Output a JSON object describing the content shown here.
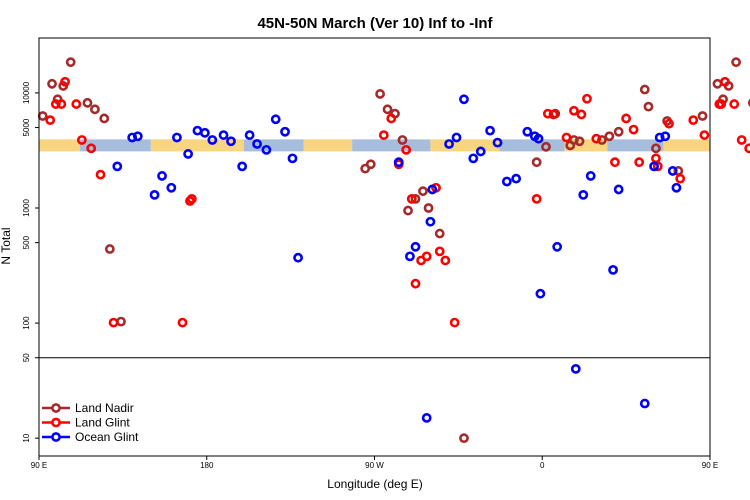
{
  "chart_data": {
    "type": "scatter",
    "title": "45N-50N March (Ver 10)   Inf to -Inf",
    "xlabel": "Longitude (deg E)",
    "ylabel": "N Total",
    "x_unwrapped_range": [
      90,
      450
    ],
    "xticks": [
      {
        "x": 90,
        "label": "90 E"
      },
      {
        "x": 180,
        "label": "180"
      },
      {
        "x": 270,
        "label": "90 W"
      },
      {
        "x": 360,
        "label": "0"
      },
      {
        "x": 450,
        "label": "90 E"
      },
      {
        "x": 540,
        "label": "180"
      }
    ],
    "ylog": true,
    "ylim": [
      7,
      30000
    ],
    "yticks": [
      {
        "y": 10,
        "label": "10"
      },
      {
        "y": 50,
        "label": "50"
      },
      {
        "y": 100,
        "label": "100"
      },
      {
        "y": 500,
        "label": "500"
      },
      {
        "y": 1000,
        "label": "1000"
      },
      {
        "y": 5000,
        "label": "5000"
      },
      {
        "y": 10000,
        "label": "10000"
      }
    ],
    "hline": 50,
    "band": {
      "y": 3500,
      "colors": [
        "#f8d57e",
        "#a6bddb"
      ]
    },
    "legend": {
      "position": "bottom-left",
      "items": [
        {
          "name": "Land Nadir",
          "color": "#a52a2a"
        },
        {
          "name": "Land Glint",
          "color": "#ff0000"
        },
        {
          "name": "Ocean Glint",
          "color": "#0000ff"
        }
      ]
    },
    "series": [
      {
        "name": "Land Nadir",
        "color": "#a52a2a",
        "points": [
          [
            92,
            6300
          ],
          [
            97,
            12000
          ],
          [
            100,
            8800
          ],
          [
            103,
            11500
          ],
          [
            107,
            18500
          ],
          [
            116,
            8200
          ],
          [
            120,
            7200
          ],
          [
            125,
            6000
          ],
          [
            128,
            440
          ],
          [
            134,
            103
          ],
          [
            265,
            2200
          ],
          [
            268,
            2400
          ],
          [
            273,
            9800
          ],
          [
            277,
            7200
          ],
          [
            281,
            6600
          ],
          [
            285,
            3900
          ],
          [
            288,
            950
          ],
          [
            292,
            1200
          ],
          [
            296,
            1400
          ],
          [
            299,
            1000
          ],
          [
            305,
            600
          ],
          [
            318,
            10
          ],
          [
            357,
            2500
          ],
          [
            362,
            3400
          ],
          [
            367,
            6600
          ],
          [
            375,
            3500
          ],
          [
            377,
            3900
          ],
          [
            380,
            3800
          ],
          [
            392,
            3900
          ],
          [
            396,
            4200
          ],
          [
            401,
            4600
          ],
          [
            415,
            10700
          ],
          [
            417,
            7600
          ],
          [
            421,
            3300
          ],
          [
            427,
            5700
          ],
          [
            433,
            2100
          ],
          [
            446,
            6300
          ],
          [
            454,
            12000
          ],
          [
            457,
            8800
          ],
          [
            460,
            11500
          ],
          [
            464,
            18500
          ],
          [
            473,
            8200
          ],
          [
            477,
            7200
          ],
          [
            482,
            6000
          ],
          [
            485,
            440
          ],
          [
            491,
            103
          ]
        ]
      },
      {
        "name": "Land Glint",
        "color": "#ff0000",
        "points": [
          [
            96,
            5800
          ],
          [
            99,
            8000
          ],
          [
            102,
            8000
          ],
          [
            104,
            12500
          ],
          [
            110,
            8000
          ],
          [
            113,
            3900
          ],
          [
            118,
            3300
          ],
          [
            123,
            1950
          ],
          [
            130,
            101
          ],
          [
            167,
            101
          ],
          [
            171,
            1150
          ],
          [
            172,
            1200
          ],
          [
            275,
            4300
          ],
          [
            279,
            6000
          ],
          [
            283,
            2400
          ],
          [
            287,
            3200
          ],
          [
            290,
            1200
          ],
          [
            292,
            220
          ],
          [
            295,
            350
          ],
          [
            298,
            380
          ],
          [
            303,
            1500
          ],
          [
            305,
            420
          ],
          [
            308,
            350
          ],
          [
            313,
            101
          ],
          [
            357,
            1200
          ],
          [
            363,
            6600
          ],
          [
            366,
            6500
          ],
          [
            373,
            4100
          ],
          [
            377,
            7000
          ],
          [
            381,
            6500
          ],
          [
            384,
            8900
          ],
          [
            389,
            4000
          ],
          [
            399,
            2500
          ],
          [
            405,
            6000
          ],
          [
            409,
            4800
          ],
          [
            412,
            2500
          ],
          [
            421,
            2700
          ],
          [
            422,
            2300
          ],
          [
            428,
            5400
          ],
          [
            434,
            1800
          ],
          [
            441,
            5800
          ],
          [
            447,
            4300
          ],
          [
            455,
            8000
          ],
          [
            456,
            8000
          ],
          [
            458,
            12500
          ],
          [
            463,
            8000
          ],
          [
            467,
            3900
          ],
          [
            471,
            3300
          ],
          [
            477,
            1950
          ],
          [
            485,
            101
          ]
        ]
      },
      {
        "name": "Ocean Glint",
        "color": "#0000ff",
        "points": [
          [
            132,
            2300
          ],
          [
            140,
            4100
          ],
          [
            143,
            4200
          ],
          [
            152,
            1300
          ],
          [
            156,
            1900
          ],
          [
            161,
            1500
          ],
          [
            164,
            4100
          ],
          [
            170,
            2950
          ],
          [
            175,
            4700
          ],
          [
            179,
            4500
          ],
          [
            183,
            3900
          ],
          [
            189,
            4300
          ],
          [
            193,
            3800
          ],
          [
            199,
            2300
          ],
          [
            203,
            4300
          ],
          [
            207,
            3600
          ],
          [
            212,
            3200
          ],
          [
            217,
            5900
          ],
          [
            222,
            4600
          ],
          [
            226,
            2700
          ],
          [
            229,
            370
          ],
          [
            283,
            2500
          ],
          [
            289,
            380
          ],
          [
            292,
            460
          ],
          [
            298,
            15
          ],
          [
            300,
            760
          ],
          [
            301,
            1450
          ],
          [
            310,
            3600
          ],
          [
            314,
            4100
          ],
          [
            318,
            8800
          ],
          [
            323,
            2700
          ],
          [
            327,
            3100
          ],
          [
            332,
            4700
          ],
          [
            336,
            3700
          ],
          [
            341,
            1700
          ],
          [
            346,
            1800
          ],
          [
            352,
            4600
          ],
          [
            356,
            4200
          ],
          [
            358,
            4000
          ],
          [
            359,
            180
          ],
          [
            368,
            460
          ],
          [
            378,
            40
          ],
          [
            382,
            1300
          ],
          [
            386,
            1900
          ],
          [
            398,
            290
          ],
          [
            401,
            1450
          ],
          [
            415,
            20
          ],
          [
            420,
            2300
          ],
          [
            423,
            4100
          ],
          [
            426,
            4200
          ],
          [
            430,
            2100
          ],
          [
            432,
            1500
          ]
        ]
      }
    ]
  }
}
